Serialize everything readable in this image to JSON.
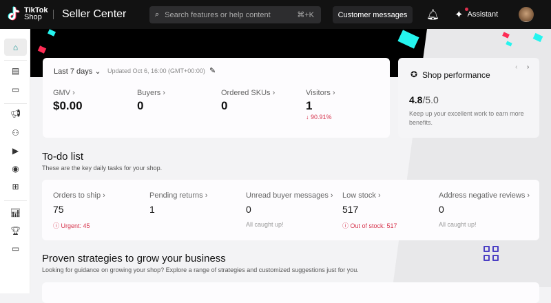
{
  "header": {
    "logo_line1": "TikTok",
    "logo_line2": "Shop",
    "title": "Seller Center",
    "search_placeholder": "Search features or help content",
    "search_shortcut": "⌘+K",
    "customer_messages": "Customer messages",
    "assistant": "Assistant"
  },
  "sidebar": {
    "items": [
      "home",
      "orders",
      "returns",
      "marketing",
      "affiliate",
      "live-video",
      "promotion",
      "apps",
      "analytics",
      "rewards",
      "finance"
    ],
    "active": "home"
  },
  "metrics": {
    "date_range": "Last 7 days",
    "updated": "Updated Oct 6, 16:00 (GMT+00:00)",
    "items": [
      {
        "label": "GMV",
        "value": "$0.00"
      },
      {
        "label": "Buyers",
        "value": "0"
      },
      {
        "label": "Ordered SKUs",
        "value": "0"
      },
      {
        "label": "Visitors",
        "value": "1",
        "change": "90.91%"
      }
    ]
  },
  "shop_performance": {
    "title": "Shop performance",
    "score": "4.8",
    "max": "/5.0",
    "desc": "Keep up your excellent work to earn more benefits."
  },
  "todo": {
    "title": "To-do list",
    "subtitle": "These are the key daily tasks for your shop.",
    "items": [
      {
        "label": "Orders to ship",
        "value": "75",
        "note": "Urgent: 45",
        "status": "alert"
      },
      {
        "label": "Pending returns",
        "value": "1",
        "note": "",
        "status": "none"
      },
      {
        "label": "Unread buyer messages",
        "value": "0",
        "note": "All caught up!",
        "status": "ok"
      },
      {
        "label": "Low stock",
        "value": "517",
        "note": "Out of stock: 517",
        "status": "alert"
      },
      {
        "label": "Address negative reviews",
        "value": "0",
        "note": "All caught up!",
        "status": "ok"
      }
    ]
  },
  "strategies": {
    "title": "Proven strategies to grow your business",
    "subtitle": "Looking for guidance on growing your shop? Explore a range of strategies and customized suggestions just for you."
  },
  "colors": {
    "accent": "#25f4ee",
    "brand_red": "#fe2c55",
    "alert": "#d6334c",
    "grid_icon": "#4b3fc4"
  }
}
